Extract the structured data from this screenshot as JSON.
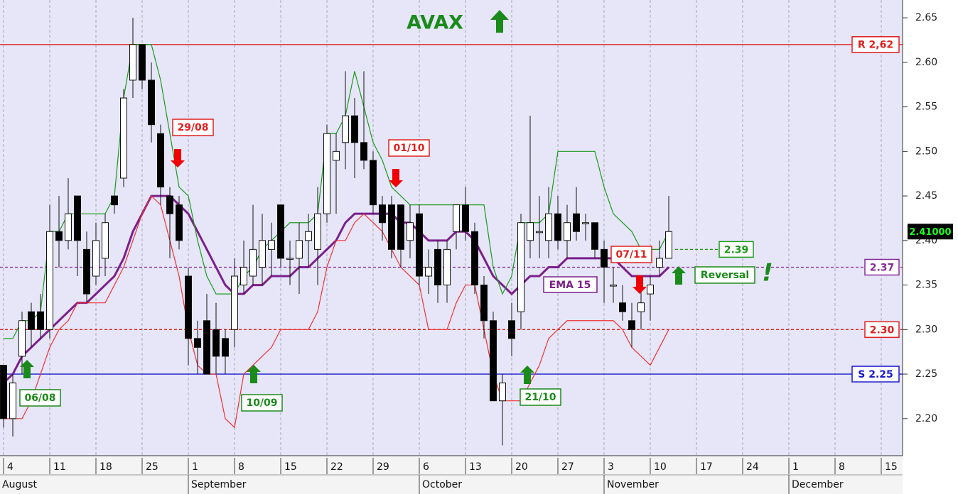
{
  "chart_data": {
    "type": "candlestick",
    "title": "AVAX",
    "categories": [
      "4",
      null,
      null,
      null,
      null,
      "11",
      null,
      null,
      null,
      null,
      "18",
      null,
      null,
      null,
      null,
      "25",
      null,
      null,
      null,
      null,
      "1",
      null,
      null,
      null,
      null,
      "8",
      null,
      null,
      null,
      null,
      "15",
      null,
      null,
      null,
      null,
      "22",
      null,
      null,
      null,
      null,
      "29",
      null,
      null,
      null,
      null,
      "6",
      null,
      null,
      null,
      null,
      "13",
      null,
      null,
      null,
      null,
      "20",
      null,
      null,
      null,
      null,
      "27",
      null,
      null,
      null,
      null,
      "3",
      null,
      null,
      null,
      null,
      "10",
      null,
      null,
      null,
      null,
      "17",
      null,
      null,
      null,
      null,
      "24",
      null,
      null,
      null,
      null,
      "1",
      null,
      null,
      null,
      null,
      "8",
      null,
      null,
      null,
      null,
      "15"
    ],
    "months": [
      "August",
      "September",
      "October",
      "November",
      "December"
    ],
    "open": [
      2.26,
      2.2,
      2.27,
      2.32,
      2.32,
      2.3,
      2.41,
      2.4,
      2.45,
      2.39,
      2.36,
      2.38,
      2.45,
      2.47,
      2.58,
      2.62,
      2.58,
      2.52,
      2.45,
      2.44,
      2.36,
      2.29,
      2.31,
      2.3,
      2.29,
      2.3,
      2.35,
      2.36,
      2.37,
      2.39,
      2.44,
      2.38,
      2.38,
      2.4,
      2.39,
      2.43,
      2.49,
      2.51,
      2.54,
      2.51,
      2.49,
      2.44,
      2.44,
      2.44,
      2.4,
      2.43,
      2.36,
      2.39,
      2.35,
      2.41,
      2.44,
      2.41,
      2.35,
      2.31,
      2.22,
      2.31,
      2.32,
      2.4,
      2.41,
      2.4,
      2.43,
      2.4,
      2.43,
      2.42,
      2.42,
      2.39,
      2.35,
      2.33,
      2.31,
      2.32,
      2.34,
      2.37,
      2.38,
      null,
      null,
      null,
      null,
      null,
      null,
      null,
      null,
      null,
      null,
      null,
      null,
      null,
      null,
      null,
      null,
      null,
      null,
      null,
      null,
      null,
      null,
      null
    ],
    "high": [
      2.26,
      2.25,
      2.32,
      2.33,
      2.34,
      2.44,
      2.45,
      2.47,
      2.45,
      2.41,
      2.42,
      2.43,
      2.45,
      2.57,
      2.65,
      2.62,
      2.6,
      2.53,
      2.46,
      2.45,
      2.37,
      2.31,
      2.34,
      2.33,
      2.3,
      2.38,
      2.4,
      2.44,
      2.43,
      2.42,
      2.44,
      2.4,
      2.42,
      2.43,
      2.46,
      2.53,
      2.52,
      2.59,
      2.56,
      2.59,
      2.5,
      2.45,
      2.45,
      2.44,
      2.44,
      2.44,
      2.39,
      2.4,
      2.4,
      2.44,
      2.46,
      2.42,
      2.36,
      2.32,
      2.25,
      2.33,
      2.43,
      2.54,
      2.45,
      2.46,
      2.45,
      2.44,
      2.46,
      2.43,
      2.42,
      2.4,
      2.37,
      2.35,
      2.33,
      2.35,
      2.36,
      2.4,
      2.45,
      null,
      null,
      null,
      null,
      null,
      null,
      null,
      null,
      null,
      null,
      null,
      null,
      null,
      null,
      null,
      null,
      null,
      null,
      null,
      null,
      null,
      null,
      null
    ],
    "low": [
      2.19,
      2.18,
      2.25,
      2.28,
      2.29,
      2.29,
      2.37,
      2.39,
      2.36,
      2.33,
      2.35,
      2.36,
      2.43,
      2.46,
      2.56,
      2.57,
      2.51,
      2.44,
      2.38,
      2.39,
      2.26,
      2.25,
      2.25,
      2.25,
      2.25,
      2.28,
      2.34,
      2.35,
      2.35,
      2.36,
      2.37,
      2.35,
      2.34,
      2.37,
      2.35,
      2.42,
      2.43,
      2.48,
      2.47,
      2.48,
      2.43,
      2.4,
      2.38,
      2.37,
      2.38,
      2.35,
      2.34,
      2.33,
      2.33,
      2.39,
      2.4,
      2.34,
      2.29,
      2.22,
      2.17,
      2.27,
      2.3,
      2.38,
      2.38,
      2.38,
      2.39,
      2.38,
      2.4,
      2.4,
      2.38,
      2.33,
      2.33,
      2.31,
      2.28,
      2.3,
      2.31,
      2.36,
      2.38,
      null,
      null,
      null,
      null,
      null,
      null,
      null,
      null,
      null,
      null,
      null,
      null,
      null,
      null,
      null,
      null,
      null,
      null,
      null,
      null,
      null,
      null,
      null
    ],
    "close": [
      2.2,
      2.24,
      2.31,
      2.3,
      2.3,
      2.41,
      2.4,
      2.43,
      2.4,
      2.34,
      2.4,
      2.42,
      2.44,
      2.56,
      2.62,
      2.58,
      2.53,
      2.46,
      2.43,
      2.4,
      2.29,
      2.28,
      2.25,
      2.27,
      2.27,
      2.36,
      2.37,
      2.39,
      2.4,
      2.4,
      2.38,
      2.38,
      2.4,
      2.41,
      2.43,
      2.52,
      2.5,
      2.54,
      2.51,
      2.49,
      2.44,
      2.42,
      2.39,
      2.39,
      2.42,
      2.36,
      2.37,
      2.35,
      2.39,
      2.44,
      2.41,
      2.35,
      2.31,
      2.22,
      2.24,
      2.29,
      2.42,
      2.42,
      2.41,
      2.43,
      2.4,
      2.42,
      2.41,
      2.42,
      2.39,
      2.37,
      2.35,
      2.32,
      2.3,
      2.33,
      2.35,
      2.38,
      2.41,
      null,
      null,
      null,
      null,
      null,
      null,
      null,
      null,
      null,
      null,
      null,
      null,
      null,
      null,
      null,
      null,
      null,
      null,
      null,
      null,
      null,
      null,
      null
    ],
    "series": [
      {
        "name": "EMA 15",
        "color": "#7b1f8c",
        "values": [
          2.24,
          2.25,
          2.27,
          2.28,
          2.29,
          2.3,
          2.31,
          2.32,
          2.33,
          2.33,
          2.34,
          2.35,
          2.36,
          2.38,
          2.41,
          2.43,
          2.45,
          2.45,
          2.45,
          2.44,
          2.43,
          2.41,
          2.39,
          2.37,
          2.35,
          2.34,
          2.34,
          2.35,
          2.35,
          2.36,
          2.36,
          2.36,
          2.37,
          2.37,
          2.38,
          2.39,
          2.4,
          2.42,
          2.43,
          2.43,
          2.43,
          2.43,
          2.43,
          2.42,
          2.42,
          2.41,
          2.4,
          2.4,
          2.4,
          2.41,
          2.41,
          2.4,
          2.38,
          2.36,
          2.35,
          2.34,
          2.35,
          2.36,
          2.36,
          2.37,
          2.37,
          2.38,
          2.38,
          2.38,
          2.38,
          2.38,
          2.38,
          2.37,
          2.36,
          2.36,
          2.36,
          2.36,
          2.37,
          null,
          null,
          null,
          null,
          null,
          null,
          null,
          null,
          null,
          null,
          null,
          null,
          null,
          null,
          null,
          null,
          null,
          null,
          null,
          null,
          null,
          null,
          null
        ]
      },
      {
        "color": "#1a9a1a",
        "values": [
          2.29,
          2.29,
          2.31,
          2.31,
          2.32,
          2.41,
          2.41,
          2.43,
          2.43,
          2.43,
          2.43,
          2.43,
          2.45,
          2.56,
          2.62,
          2.62,
          2.62,
          2.58,
          2.52,
          2.46,
          2.45,
          2.4,
          2.36,
          2.34,
          2.34,
          2.34,
          2.36,
          2.37,
          2.39,
          2.4,
          2.41,
          2.42,
          2.42,
          2.42,
          2.43,
          2.52,
          2.52,
          2.54,
          2.59,
          2.55,
          2.51,
          2.49,
          2.46,
          2.45,
          2.44,
          2.44,
          2.44,
          2.44,
          2.44,
          2.44,
          2.44,
          2.44,
          2.44,
          2.37,
          2.34,
          2.36,
          2.42,
          2.42,
          2.42,
          2.43,
          2.5,
          2.5,
          2.5,
          2.5,
          2.5,
          2.46,
          2.43,
          2.42,
          2.41,
          2.39,
          2.39,
          2.39,
          2.41,
          null,
          null,
          null,
          null,
          null,
          null,
          null,
          null,
          null,
          null,
          null,
          null,
          null,
          null,
          null,
          null,
          null,
          null,
          null,
          null,
          null,
          null,
          null
        ]
      },
      {
        "color": "#f03030",
        "values": [
          2.2,
          2.2,
          2.2,
          2.22,
          2.25,
          2.28,
          2.3,
          2.31,
          2.33,
          2.33,
          2.33,
          2.33,
          2.35,
          2.37,
          2.4,
          2.43,
          2.45,
          2.44,
          2.4,
          2.36,
          2.3,
          2.26,
          2.25,
          2.25,
          2.2,
          2.19,
          2.25,
          2.26,
          2.27,
          2.28,
          2.3,
          2.3,
          2.3,
          2.3,
          2.32,
          2.37,
          2.4,
          2.4,
          2.42,
          2.43,
          2.42,
          2.41,
          2.39,
          2.37,
          2.36,
          2.35,
          2.3,
          2.3,
          2.3,
          2.33,
          2.35,
          2.35,
          2.3,
          2.25,
          2.22,
          2.22,
          2.22,
          2.24,
          2.26,
          2.29,
          2.3,
          2.31,
          2.31,
          2.31,
          2.31,
          2.31,
          2.31,
          2.3,
          2.28,
          2.27,
          2.26,
          2.28,
          2.3,
          null,
          null,
          null,
          null,
          null,
          null,
          null,
          null,
          null,
          null,
          null,
          null,
          null,
          null,
          null,
          null,
          null,
          null,
          null,
          null,
          null,
          null,
          null
        ]
      }
    ],
    "ylim": [
      2.16,
      2.67
    ],
    "yticks": [
      {
        "value": 2.2,
        "label": "2.20"
      },
      2.25,
      {
        "value": 2.3,
        "label": "2.30"
      },
      2.35,
      {
        "value": 2.4,
        "label": "2.40"
      },
      2.45,
      {
        "value": 2.5,
        "label": "2.50"
      },
      2.55,
      {
        "value": 2.6,
        "label": "2.60"
      },
      2.65
    ],
    "levels": [
      {
        "value": 2.62,
        "label": "R 2,62",
        "color": "#e02020",
        "style": "solid"
      },
      {
        "value": 2.25,
        "label": "S 2.25",
        "color": "#1a1acc",
        "style": "solid"
      },
      {
        "value": 2.3,
        "label": "2.30",
        "color": "#e02020",
        "style": "dashed"
      },
      {
        "value": 2.37,
        "label": "2.37",
        "color": "#8a2a9a",
        "style": "dashed"
      },
      {
        "value": 2.39,
        "label": "2.39",
        "color": "#1a9a1a",
        "style": "dashed"
      }
    ],
    "annotations": [
      {
        "text": "29/08",
        "color": "#e02020"
      },
      {
        "text": "01/10",
        "color": "#e02020"
      },
      {
        "text": "07/11",
        "color": "#e02020"
      },
      {
        "text": "06/08",
        "color": "#1a8a1a"
      },
      {
        "text": "10/09",
        "color": "#1a8a1a"
      },
      {
        "text": "21/10",
        "color": "#1a8a1a"
      },
      {
        "text": "Reversal",
        "symbol": "!",
        "color": "#1a8a1a"
      }
    ],
    "last_price": {
      "value": 2.41,
      "label": "2.41000"
    },
    "grid": true
  }
}
